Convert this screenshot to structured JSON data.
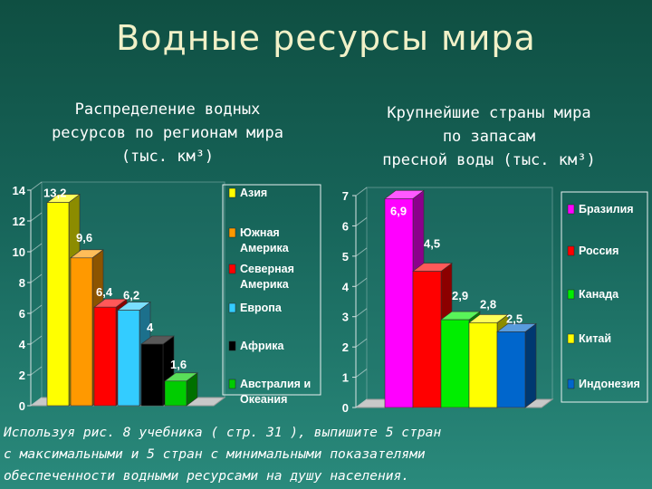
{
  "title": "Водные ресурсы мира",
  "left_subtitle": [
    "Распределение водных",
    "ресурсов по регионам мира",
    "(тыс. км³)"
  ],
  "right_subtitle": [
    "Крупнейшие страны мира",
    "по запасам",
    "пресной воды (тыс. км³)"
  ],
  "instruction": [
    "Используя рис. 8 учебника ( стр. 31 ), выпишите 5 стран",
    "с максимальными и 5 стран с минимальными показателями",
    "обеспеченности водными ресурсами на душу населения."
  ],
  "chart_data": [
    {
      "type": "bar",
      "categories": [
        "Азия",
        "Южная Америка",
        "Северная Америка",
        "Европа",
        "Африка",
        "Австралия и Океания"
      ],
      "legend_lines": [
        [
          "Азия"
        ],
        [
          "Южная",
          "Америка"
        ],
        [
          "Северная",
          "Америка"
        ],
        [
          "Европа"
        ],
        [
          "Африка"
        ],
        [
          "Австралия и",
          "Океания"
        ]
      ],
      "values": [
        13.2,
        9.6,
        6.4,
        6.2,
        4,
        1.6
      ],
      "value_labels": [
        "13,2",
        "9,6",
        "6,4",
        "6,2",
        "4",
        "1,6"
      ],
      "colors": [
        "#ffff00",
        "#ff9900",
        "#ff0000",
        "#33ccff",
        "#000000",
        "#00cc00"
      ],
      "ylim": [
        0,
        14
      ],
      "yticks": [
        0,
        2,
        4,
        6,
        8,
        10,
        12,
        14
      ],
      "legend_position": "right",
      "grid": false
    },
    {
      "type": "bar",
      "categories": [
        "Бразилия",
        "Россия",
        "Канада",
        "Китай",
        "Индонезия"
      ],
      "legend_lines": [
        [
          "Бразилия"
        ],
        [
          "Россия"
        ],
        [
          "Канада"
        ],
        [
          "Китай"
        ],
        [
          "Индонезия"
        ]
      ],
      "values": [
        6.9,
        4.5,
        2.9,
        2.8,
        2.5
      ],
      "value_labels": [
        "6,9",
        "4,5",
        "2,9",
        "2,8",
        "2,5"
      ],
      "colors": [
        "#ff00ff",
        "#ff0000",
        "#00ee00",
        "#ffff00",
        "#0066cc"
      ],
      "ylim": [
        0,
        7
      ],
      "yticks": [
        0,
        1,
        2,
        3,
        4,
        5,
        6,
        7
      ],
      "legend_position": "right",
      "grid": false
    }
  ]
}
